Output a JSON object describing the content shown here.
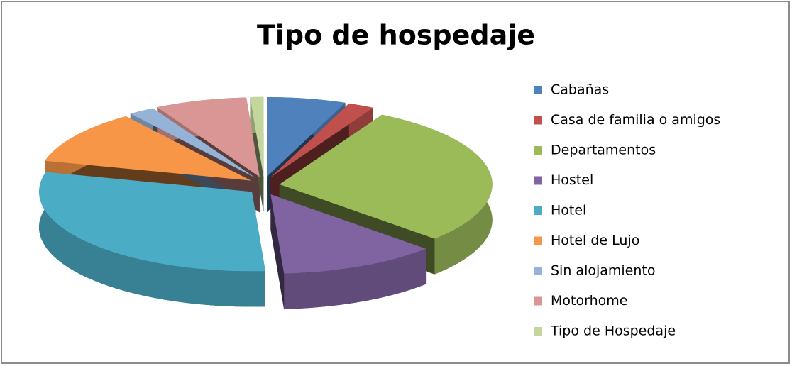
{
  "chart_data": {
    "type": "pie3d",
    "title": "Tipo de hospedaje",
    "categories": [
      "Cabañas",
      "Casa de familia o amigos",
      "Departamentos",
      "Hostel",
      "Hotel",
      "Hotel de Lujo",
      "Sin alojamiento",
      "Motorhome",
      "Tipo de Hospedaje"
    ],
    "values": [
      6,
      2,
      29,
      12,
      30,
      11,
      2,
      7,
      1
    ],
    "colors": [
      "#4f81bd",
      "#c0504d",
      "#9bbb59",
      "#8064a2",
      "#4bacc6",
      "#f79646",
      "#95b3d7",
      "#d99694",
      "#c3d69b"
    ],
    "legend": "right"
  }
}
